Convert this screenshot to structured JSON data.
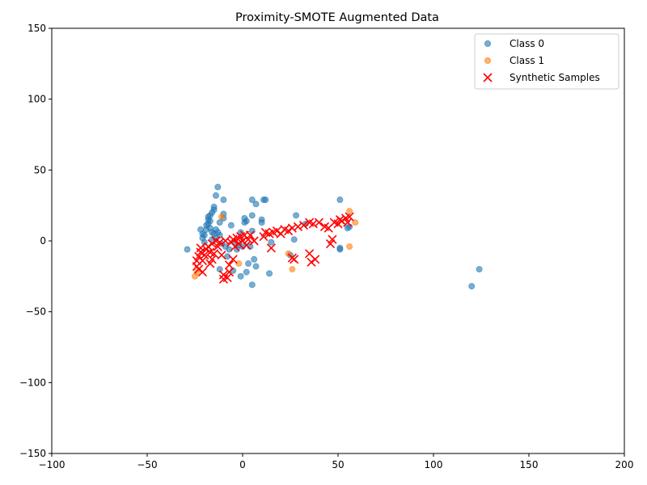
{
  "chart_data": {
    "type": "scatter",
    "title": "Proximity-SMOTE Augmented Data",
    "xlabel": "",
    "ylabel": "",
    "xlim": [
      -100,
      200
    ],
    "ylim": [
      -150,
      150
    ],
    "x_ticks": [
      -100,
      -50,
      0,
      50,
      100,
      150,
      200
    ],
    "y_ticks": [
      -150,
      -100,
      -50,
      0,
      50,
      100,
      150
    ],
    "grid": false,
    "legend_position": "top-right",
    "series": [
      {
        "name": "Class 0",
        "marker": "circle",
        "color": "#1f77b4",
        "points": [
          [
            -29,
            -6
          ],
          [
            -22,
            8
          ],
          [
            -21,
            5
          ],
          [
            -21,
            2
          ],
          [
            -20,
            -1
          ],
          [
            -20,
            4
          ],
          [
            -19,
            8
          ],
          [
            -19,
            11
          ],
          [
            -18,
            12
          ],
          [
            -18,
            15
          ],
          [
            -18,
            17
          ],
          [
            -17,
            18
          ],
          [
            -17,
            14
          ],
          [
            -17,
            9
          ],
          [
            -16,
            20
          ],
          [
            -16,
            6
          ],
          [
            -16,
            1
          ],
          [
            -15,
            22
          ],
          [
            -15,
            24
          ],
          [
            -15,
            5
          ],
          [
            -14,
            32
          ],
          [
            -14,
            8
          ],
          [
            -14,
            2
          ],
          [
            -13,
            38
          ],
          [
            -13,
            6
          ],
          [
            -12,
            13
          ],
          [
            -12,
            4
          ],
          [
            -12,
            -20
          ],
          [
            -11,
            -2
          ],
          [
            -10,
            29
          ],
          [
            -10,
            19
          ],
          [
            -10,
            16
          ],
          [
            -9,
            -4
          ],
          [
            -8,
            -11
          ],
          [
            -7,
            -6
          ],
          [
            -6,
            11
          ],
          [
            -5,
            -21
          ],
          [
            -4,
            -1
          ],
          [
            -3,
            -6
          ],
          [
            -2,
            -3
          ],
          [
            -1,
            -25
          ],
          [
            -1,
            6
          ],
          [
            0,
            -4
          ],
          [
            1,
            13
          ],
          [
            1,
            16
          ],
          [
            2,
            -22
          ],
          [
            2,
            14
          ],
          [
            3,
            -16
          ],
          [
            4,
            -4
          ],
          [
            5,
            29
          ],
          [
            5,
            18
          ],
          [
            5,
            7
          ],
          [
            5,
            -31
          ],
          [
            6,
            -13
          ],
          [
            7,
            -18
          ],
          [
            7,
            26
          ],
          [
            10,
            15
          ],
          [
            10,
            13
          ],
          [
            11,
            29
          ],
          [
            12,
            29
          ],
          [
            14,
            -23
          ],
          [
            15,
            -1
          ],
          [
            25,
            -10
          ],
          [
            27,
            1
          ],
          [
            28,
            18
          ],
          [
            33,
            12
          ],
          [
            51,
            -5
          ],
          [
            51,
            -6
          ],
          [
            51,
            29
          ],
          [
            55,
            9
          ],
          [
            56,
            10
          ],
          [
            120,
            -32
          ],
          [
            124,
            -20
          ]
        ]
      },
      {
        "name": "Class 1",
        "marker": "circle",
        "color": "#ff7f0e",
        "points": [
          [
            -25,
            -25
          ],
          [
            -24,
            -22
          ],
          [
            -11,
            17
          ],
          [
            -2,
            -16
          ],
          [
            24,
            -9
          ],
          [
            26,
            -20
          ],
          [
            56,
            -4
          ],
          [
            56,
            21
          ],
          [
            59,
            13
          ]
        ]
      },
      {
        "name": "Synthetic Samples",
        "marker": "x",
        "color": "#ff0000",
        "points": [
          [
            -24,
            -18
          ],
          [
            -24,
            -14
          ],
          [
            -23,
            -20
          ],
          [
            -23,
            -11
          ],
          [
            -22,
            -8
          ],
          [
            -22,
            -5
          ],
          [
            -21,
            -14
          ],
          [
            -21,
            -22
          ],
          [
            -20,
            -10
          ],
          [
            -19,
            -6
          ],
          [
            -18,
            -4
          ],
          [
            -17,
            -8
          ],
          [
            -17,
            -16
          ],
          [
            -16,
            -2
          ],
          [
            -16,
            -13
          ],
          [
            -15,
            -9
          ],
          [
            -14,
            0
          ],
          [
            -13,
            -4
          ],
          [
            -12,
            -1
          ],
          [
            -11,
            -10
          ],
          [
            -10,
            -24
          ],
          [
            -10,
            -27
          ],
          [
            -9,
            0
          ],
          [
            -8,
            -26
          ],
          [
            -7,
            -17
          ],
          [
            -7,
            -22
          ],
          [
            -6,
            -1
          ],
          [
            -5,
            -13
          ],
          [
            -5,
            1
          ],
          [
            -4,
            -4
          ],
          [
            -3,
            2
          ],
          [
            -2,
            -2
          ],
          [
            -1,
            3
          ],
          [
            0,
            0
          ],
          [
            1,
            4
          ],
          [
            2,
            -3
          ],
          [
            3,
            1
          ],
          [
            4,
            4
          ],
          [
            6,
            0
          ],
          [
            11,
            3
          ],
          [
            12,
            6
          ],
          [
            14,
            5
          ],
          [
            15,
            -5
          ],
          [
            16,
            6
          ],
          [
            18,
            7
          ],
          [
            20,
            5
          ],
          [
            22,
            8
          ],
          [
            24,
            7
          ],
          [
            26,
            -12
          ],
          [
            26,
            9
          ],
          [
            27,
            -13
          ],
          [
            29,
            10
          ],
          [
            32,
            11
          ],
          [
            35,
            -9
          ],
          [
            35,
            13
          ],
          [
            36,
            -15
          ],
          [
            37,
            12
          ],
          [
            38,
            -13
          ],
          [
            40,
            13
          ],
          [
            43,
            10
          ],
          [
            45,
            9
          ],
          [
            46,
            -2
          ],
          [
            47,
            1
          ],
          [
            48,
            13
          ],
          [
            50,
            12
          ],
          [
            51,
            15
          ],
          [
            52,
            14
          ],
          [
            54,
            16
          ],
          [
            55,
            13
          ],
          [
            56,
            17
          ]
        ]
      }
    ]
  }
}
